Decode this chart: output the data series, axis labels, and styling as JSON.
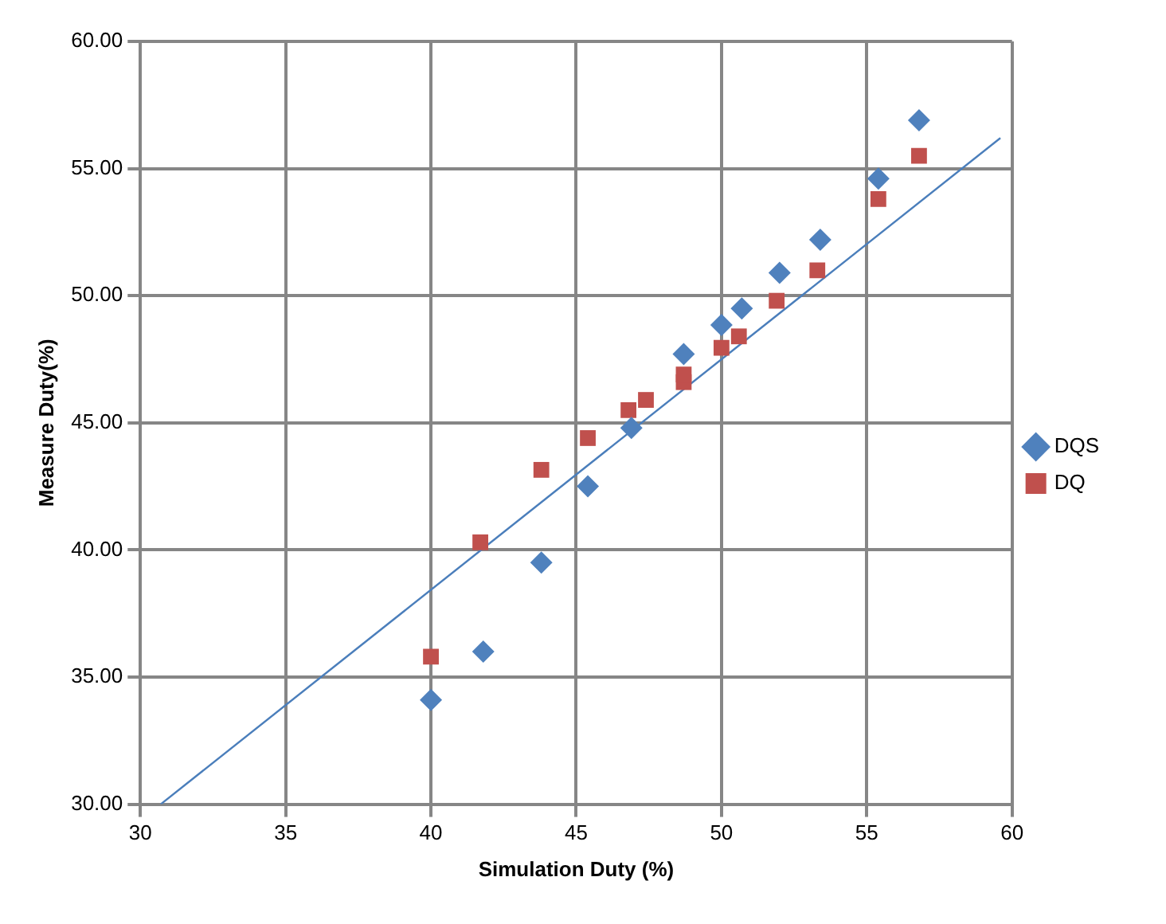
{
  "chart_data": {
    "type": "scatter",
    "xlabel": "Simulation Duty (%)",
    "ylabel": "Measure Duty(%)",
    "xlim": [
      30,
      60
    ],
    "xticks": [
      30,
      35,
      40,
      45,
      50,
      55,
      60
    ],
    "ylim": [
      30,
      60
    ],
    "yticks": [
      {
        "value": 30,
        "label": "30.00"
      },
      {
        "value": 35,
        "label": "35.00"
      },
      {
        "value": 40,
        "label": "40.00"
      },
      {
        "value": 45,
        "label": "45.00"
      },
      {
        "value": 50,
        "label": "50.00"
      },
      {
        "value": 55,
        "label": "55.00"
      },
      {
        "value": 60,
        "label": "60.00"
      }
    ],
    "grid": true,
    "legend": "right",
    "series": [
      {
        "name": "DQS",
        "color": "#4f81bd",
        "marker": "diamond",
        "x": [
          40.0,
          41.8,
          43.8,
          45.4,
          46.9,
          48.7,
          50.0,
          50.7,
          52.0,
          53.4,
          55.4,
          56.8
        ],
        "values": [
          34.1,
          36.0,
          39.5,
          42.5,
          44.8,
          47.7,
          48.85,
          49.5,
          50.9,
          52.2,
          54.6,
          56.9
        ]
      },
      {
        "name": "DQ",
        "color": "#c0504d",
        "marker": "square",
        "x": [
          40.0,
          41.7,
          43.8,
          45.4,
          46.8,
          47.4,
          48.7,
          48.7,
          50.0,
          50.6,
          51.9,
          53.3,
          55.4,
          56.8
        ],
        "values": [
          35.8,
          40.3,
          43.15,
          44.4,
          45.5,
          45.9,
          46.6,
          46.9,
          47.95,
          48.4,
          49.8,
          51.0,
          53.8,
          55.5
        ]
      },
      {
        "type": "line",
        "color": "#4a7ebb",
        "marker": "none",
        "x": [
          30.7,
          59.6
        ],
        "values": [
          30.0,
          56.2
        ]
      }
    ]
  }
}
